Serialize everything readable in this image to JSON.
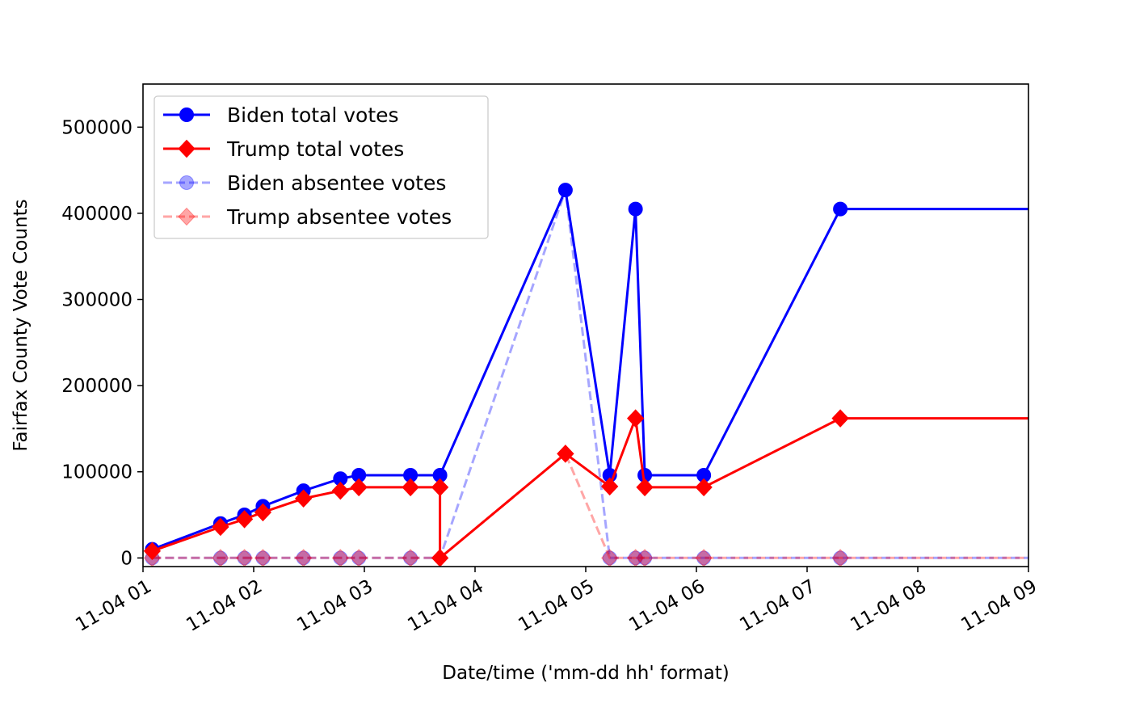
{
  "chart_data": {
    "type": "line",
    "title": "",
    "xlabel": "Date/time ('mm-dd hh' format)",
    "ylabel": "Fairfax County Vote Counts",
    "x_ticks": [
      "11-04 01",
      "11-04 02",
      "11-04 03",
      "11-04 04",
      "11-04 05",
      "11-04 06",
      "11-04 07",
      "11-04 08",
      "11-04 09"
    ],
    "y_ticks": [
      "0",
      "100000",
      "200000",
      "300000",
      "400000",
      "500000"
    ],
    "xlim": [
      "11-04 01:00",
      "11-04 09:00"
    ],
    "ylim": [
      -10000,
      550000
    ],
    "grid": false,
    "legend_position": "top-left",
    "series": [
      {
        "name": "Biden total votes",
        "color": "#0000ff",
        "style": "solid",
        "marker": "circle",
        "x": [
          "11-04 01:05",
          "11-04 01:42",
          "11-04 01:55",
          "11-04 02:05",
          "11-04 02:27",
          "11-04 02:47",
          "11-04 02:57",
          "11-04 03:25",
          "11-04 03:41",
          "11-04 04:49",
          "11-04 05:13",
          "11-04 05:27",
          "11-04 05:32",
          "11-04 06:04",
          "11-04 07:18",
          "11-04 09:00"
        ],
        "y": [
          10000,
          40000,
          50000,
          60000,
          78000,
          92000,
          96000,
          96000,
          96000,
          427000,
          96000,
          405000,
          96000,
          96000,
          405000,
          405000
        ],
        "markers": [
          true,
          true,
          true,
          true,
          true,
          true,
          true,
          true,
          true,
          true,
          true,
          true,
          true,
          true,
          true,
          false
        ]
      },
      {
        "name": "Trump total votes",
        "color": "#ff0000",
        "style": "solid",
        "marker": "diamond",
        "x": [
          "11-04 01:05",
          "11-04 01:42",
          "11-04 01:55",
          "11-04 02:05",
          "11-04 02:27",
          "11-04 02:47",
          "11-04 02:57",
          "11-04 03:25",
          "11-04 03:41",
          "11-04 03:41",
          "11-04 04:49",
          "11-04 05:13",
          "11-04 05:27",
          "11-04 05:32",
          "11-04 06:04",
          "11-04 07:18",
          "11-04 09:00"
        ],
        "y": [
          8000,
          36000,
          45000,
          53000,
          69000,
          78000,
          82000,
          82000,
          82000,
          0,
          121000,
          83000,
          162000,
          82000,
          82000,
          162000,
          162000
        ],
        "markers": [
          true,
          true,
          true,
          true,
          true,
          true,
          true,
          true,
          true,
          true,
          true,
          true,
          true,
          true,
          true,
          true,
          false
        ]
      },
      {
        "name": "Biden absentee votes",
        "color": "#0000ff",
        "opacity": 0.35,
        "style": "dashed",
        "marker": "circle",
        "x": [
          "11-04 01:05",
          "11-04 01:42",
          "11-04 01:55",
          "11-04 02:05",
          "11-04 02:27",
          "11-04 02:47",
          "11-04 02:57",
          "11-04 03:25",
          "11-04 03:41",
          "11-04 04:49",
          "11-04 05:13",
          "11-04 05:27",
          "11-04 05:32",
          "11-04 06:04",
          "11-04 07:18",
          "11-04 09:00"
        ],
        "y": [
          0,
          0,
          0,
          0,
          0,
          0,
          0,
          0,
          0,
          427000,
          0,
          0,
          0,
          0,
          0,
          0
        ],
        "markers": [
          true,
          true,
          true,
          true,
          true,
          true,
          true,
          true,
          false,
          false,
          true,
          true,
          true,
          true,
          true,
          false
        ]
      },
      {
        "name": "Trump absentee votes",
        "color": "#ff0000",
        "opacity": 0.35,
        "style": "dashed",
        "marker": "diamond",
        "x": [
          "11-04 01:05",
          "11-04 01:42",
          "11-04 01:55",
          "11-04 02:05",
          "11-04 02:27",
          "11-04 02:47",
          "11-04 02:57",
          "11-04 03:25",
          "11-04 03:41",
          "11-04 04:49",
          "11-04 05:13",
          "11-04 05:27",
          "11-04 05:32",
          "11-04 06:04",
          "11-04 07:18",
          "11-04 09:00"
        ],
        "y": [
          0,
          0,
          0,
          0,
          0,
          0,
          0,
          0,
          0,
          121000,
          0,
          0,
          0,
          0,
          0,
          0
        ],
        "markers": [
          true,
          true,
          true,
          true,
          true,
          true,
          true,
          true,
          false,
          true,
          true,
          true,
          true,
          true,
          true,
          false
        ]
      }
    ]
  }
}
